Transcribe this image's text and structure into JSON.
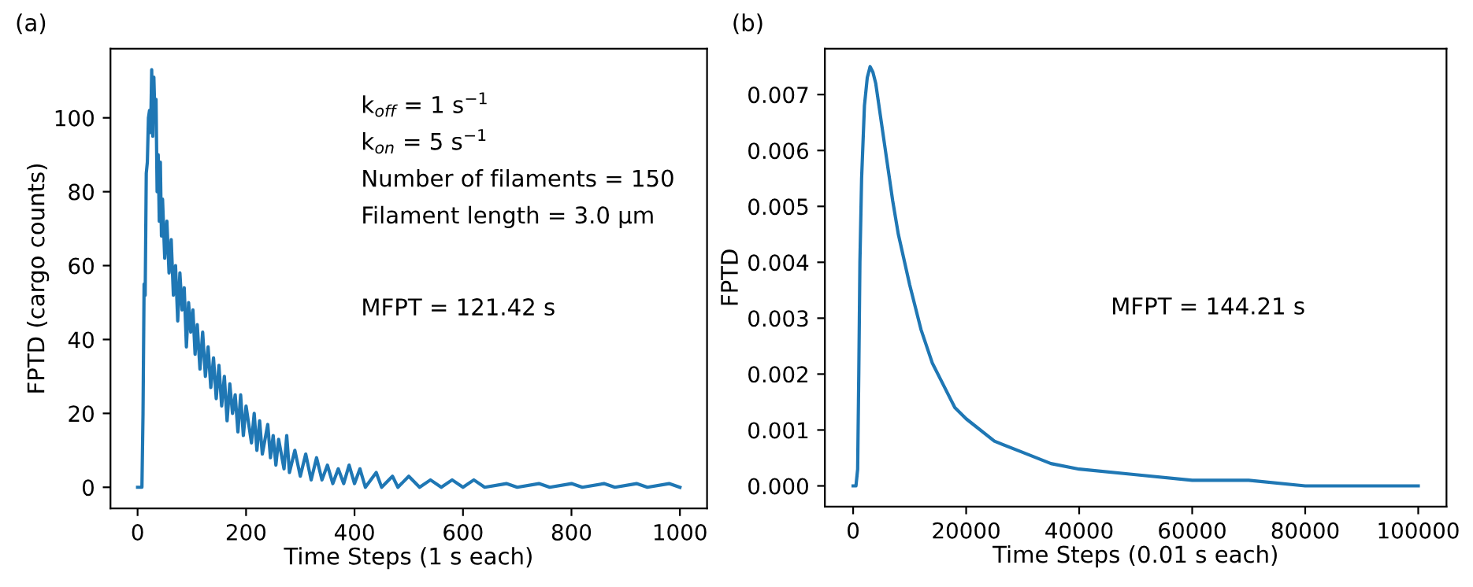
{
  "chart_data": [
    {
      "type": "line",
      "title": "(a)",
      "xlabel": "Time Steps (1 s each)",
      "ylabel": "FPTD (cargo counts)",
      "annotations": [
        "k$_{off}$ = 1 s$^{−1}$",
        "k$_{on}$ = 5 s$^{−1}$",
        "Number of filaments = 150",
        "Filament length = 3.0 µm",
        "MFPT = 121.42 s"
      ],
      "xlim": [
        -50,
        1050
      ],
      "ylim": [
        -5.7,
        118.7
      ],
      "xticks": [
        0,
        200,
        400,
        600,
        800,
        1000
      ],
      "yticks": [
        0,
        20,
        40,
        60,
        80,
        100
      ],
      "grid": false,
      "legend": false,
      "series": [
        {
          "color": "#1f77b4",
          "x": [
            0,
            8,
            10,
            12,
            14,
            16,
            18,
            20,
            22,
            24,
            26,
            28,
            30,
            32,
            34,
            36,
            38,
            40,
            42,
            44,
            46,
            50,
            54,
            58,
            62,
            66,
            70,
            74,
            78,
            82,
            86,
            90,
            94,
            98,
            102,
            106,
            110,
            115,
            120,
            125,
            130,
            135,
            140,
            145,
            150,
            155,
            160,
            165,
            170,
            175,
            180,
            185,
            190,
            195,
            200,
            210,
            215,
            220,
            225,
            230,
            240,
            245,
            250,
            255,
            260,
            270,
            275,
            280,
            290,
            300,
            310,
            320,
            330,
            340,
            350,
            360,
            370,
            380,
            390,
            400,
            410,
            420,
            440,
            450,
            470,
            480,
            500,
            520,
            540,
            560,
            580,
            600,
            620,
            640,
            680,
            700,
            740,
            760,
            800,
            820,
            860,
            880,
            920,
            940,
            980,
            1000
          ],
          "values": [
            0,
            0,
            20,
            55,
            52,
            85,
            88,
            100,
            102,
            96,
            113,
            95,
            111,
            100,
            105,
            80,
            90,
            72,
            88,
            68,
            78,
            62,
            72,
            58,
            67,
            52,
            60,
            45,
            58,
            48,
            54,
            38,
            50,
            42,
            48,
            36,
            44,
            32,
            42,
            30,
            38,
            27,
            35,
            24,
            33,
            22,
            30,
            18,
            28,
            20,
            25,
            15,
            25,
            14,
            22,
            12,
            20,
            10,
            18,
            9,
            17,
            8,
            14,
            6,
            13,
            5,
            14,
            4,
            10,
            3,
            9,
            2,
            8,
            2,
            6,
            1,
            5,
            1,
            6,
            1,
            5,
            0,
            4,
            0,
            3,
            0,
            3,
            0,
            2,
            0,
            2,
            0,
            2,
            0,
            1,
            0,
            1,
            0,
            1,
            0,
            1,
            0,
            1,
            0,
            1,
            0
          ]
        }
      ]
    },
    {
      "type": "line",
      "title": "(b)",
      "xlabel": "Time Steps (0.01 s each)",
      "ylabel": "FPTD",
      "annotations": [
        "MFPT = 144.21 s"
      ],
      "xlim": [
        -5000,
        105000
      ],
      "ylim": [
        -0.00037,
        0.00782
      ],
      "xticks": [
        0,
        20000,
        40000,
        60000,
        80000,
        100000
      ],
      "yticks": [
        {
          "value": 0,
          "label": "0.000"
        },
        {
          "value": 0.001,
          "label": "0.001"
        },
        {
          "value": 0.002,
          "label": "0.002"
        },
        {
          "value": 0.003,
          "label": "0.003"
        },
        {
          "value": 0.004,
          "label": "0.004"
        },
        {
          "value": 0.005,
          "label": "0.005"
        },
        {
          "value": 0.006,
          "label": "0.006"
        },
        {
          "value": 0.007,
          "label": "0.007"
        }
      ],
      "grid": false,
      "legend": false,
      "series": [
        {
          "color": "#1f77b4",
          "x": [
            0,
            500,
            800,
            1000,
            1200,
            1500,
            2000,
            2500,
            3000,
            3500,
            4000,
            5000,
            6000,
            7000,
            8000,
            10000,
            12000,
            14000,
            16000,
            18000,
            20000,
            25000,
            30000,
            35000,
            40000,
            50000,
            60000,
            70000,
            80000,
            90000,
            100000
          ],
          "values": [
            0,
            0,
            0.0003,
            0.002,
            0.004,
            0.0055,
            0.0068,
            0.0073,
            0.0075,
            0.0074,
            0.0072,
            0.0065,
            0.0058,
            0.0051,
            0.0045,
            0.0036,
            0.0028,
            0.0022,
            0.0018,
            0.0014,
            0.0012,
            0.0008,
            0.0006,
            0.0004,
            0.0003,
            0.0002,
            0.0001,
            0.0001,
            0,
            0,
            0
          ]
        }
      ]
    }
  ]
}
